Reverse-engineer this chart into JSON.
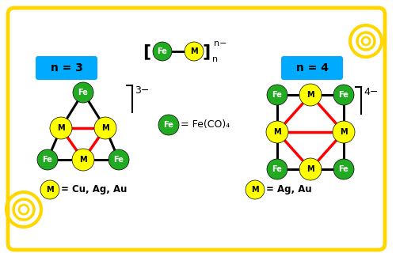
{
  "bg_color": "#ffffff",
  "scroll_color": "#FFD700",
  "scroll_inner": "#FFFFFF",
  "cyan_box_color": "#00AAFF",
  "fe_color": "#22AA22",
  "m_color": "#FFFF00",
  "black_bond": "#000000",
  "red_bond": "#FF0000",
  "text_color": "#000000",
  "n3_label": "n = 3",
  "n4_label": "n = 4",
  "m_legend_n3": "= Cu, Ag, Au",
  "m_legend_n4": "= Ag, Au",
  "fe_legend": "= Fe(CO)",
  "charge_n3": "3-",
  "charge_n4": "4-"
}
